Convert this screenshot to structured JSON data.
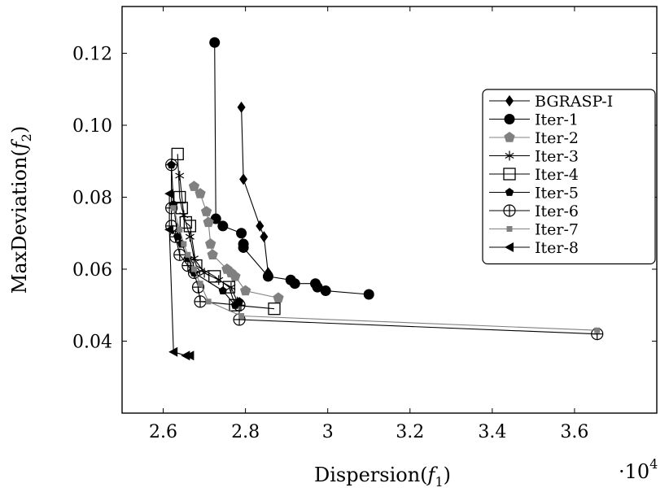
{
  "chart_data": {
    "type": "line",
    "xlabel": "Dispersion(f1)",
    "ylabel": "MaxDeviation(f2)",
    "x_multiplier": "·10^4",
    "xlim": [
      2.5,
      3.8
    ],
    "ylim": [
      0.02,
      0.133
    ],
    "x_ticks": [
      2.6,
      2.8,
      3.0,
      3.2,
      3.4,
      3.6
    ],
    "x_tick_labels": [
      "2.6",
      "2.8",
      "3",
      "3.2",
      "3.4",
      "3.6"
    ],
    "y_ticks": [
      0.04,
      0.06,
      0.08,
      0.1,
      0.12
    ],
    "y_tick_labels": [
      "0.04",
      "0.06",
      "0.08",
      "0.10",
      "0.12"
    ],
    "legend_position": "right",
    "series": [
      {
        "name": "BGRASP-I",
        "marker": "diamond",
        "color": "#000000",
        "points": [
          [
            2.79,
            0.105
          ],
          [
            2.795,
            0.085
          ],
          [
            2.835,
            0.072
          ],
          [
            2.845,
            0.069
          ],
          [
            2.855,
            0.059
          ]
        ]
      },
      {
        "name": "Iter-1",
        "marker": "circle",
        "color": "#000000",
        "points": [
          [
            2.725,
            0.123
          ],
          [
            2.728,
            0.074
          ],
          [
            2.745,
            0.072
          ],
          [
            2.79,
            0.07
          ],
          [
            2.795,
            0.067
          ],
          [
            2.795,
            0.066
          ],
          [
            2.855,
            0.058
          ],
          [
            2.91,
            0.057
          ],
          [
            2.92,
            0.056
          ],
          [
            2.97,
            0.056
          ],
          [
            2.975,
            0.055
          ],
          [
            2.995,
            0.054
          ],
          [
            3.1,
            0.053
          ]
        ]
      },
      {
        "name": "Iter-2",
        "marker": "pentagon",
        "color": "#808080",
        "points": [
          [
            2.675,
            0.083
          ],
          [
            2.69,
            0.081
          ],
          [
            2.705,
            0.076
          ],
          [
            2.71,
            0.073
          ],
          [
            2.715,
            0.067
          ],
          [
            2.72,
            0.064
          ],
          [
            2.755,
            0.06
          ],
          [
            2.765,
            0.059
          ],
          [
            2.775,
            0.058
          ],
          [
            2.8,
            0.054
          ],
          [
            2.88,
            0.052
          ]
        ]
      },
      {
        "name": "Iter-3",
        "marker": "asterisk",
        "color": "#000000",
        "points": [
          [
            2.64,
            0.086
          ],
          [
            2.65,
            0.075
          ],
          [
            2.665,
            0.069
          ],
          [
            2.675,
            0.063
          ],
          [
            2.7,
            0.059
          ],
          [
            2.735,
            0.057
          ],
          [
            2.765,
            0.055
          ],
          [
            2.78,
            0.051
          ]
        ]
      },
      {
        "name": "Iter-4",
        "marker": "square",
        "color": "#000000",
        "points": [
          [
            2.635,
            0.092
          ],
          [
            2.64,
            0.08
          ],
          [
            2.645,
            0.077
          ],
          [
            2.655,
            0.073
          ],
          [
            2.665,
            0.072
          ],
          [
            2.68,
            0.061
          ],
          [
            2.725,
            0.058
          ],
          [
            2.76,
            0.055
          ],
          [
            2.775,
            0.05
          ],
          [
            2.87,
            0.049
          ]
        ]
      },
      {
        "name": "Iter-5",
        "marker": "pentagon-filled",
        "color": "#000000",
        "points": [
          [
            2.62,
            0.089
          ],
          [
            2.625,
            0.078
          ],
          [
            2.635,
            0.069
          ],
          [
            2.645,
            0.067
          ],
          [
            2.66,
            0.063
          ],
          [
            2.675,
            0.059
          ],
          [
            2.745,
            0.054
          ],
          [
            2.775,
            0.05
          ],
          [
            2.785,
            0.051
          ]
        ]
      },
      {
        "name": "Iter-6",
        "marker": "circle-plus",
        "color": "#000000",
        "points": [
          [
            2.62,
            0.089
          ],
          [
            2.62,
            0.077
          ],
          [
            2.62,
            0.072
          ],
          [
            2.63,
            0.069
          ],
          [
            2.64,
            0.064
          ],
          [
            2.66,
            0.061
          ],
          [
            2.675,
            0.059
          ],
          [
            2.685,
            0.055
          ],
          [
            2.69,
            0.051
          ],
          [
            2.785,
            0.05
          ],
          [
            2.785,
            0.046
          ],
          [
            3.655,
            0.042
          ]
        ]
      },
      {
        "name": "Iter-7",
        "marker": "small-square",
        "color": "#808080",
        "points": [
          [
            2.625,
            0.077
          ],
          [
            2.64,
            0.071
          ],
          [
            2.65,
            0.067
          ],
          [
            2.66,
            0.064
          ],
          [
            2.675,
            0.06
          ],
          [
            2.69,
            0.056
          ],
          [
            2.71,
            0.051
          ],
          [
            2.79,
            0.047
          ],
          [
            3.655,
            0.043
          ]
        ]
      },
      {
        "name": "Iter-8",
        "marker": "triangle-left",
        "color": "#000000",
        "points": [
          [
            2.615,
            0.081
          ],
          [
            2.615,
            0.071
          ],
          [
            2.625,
            0.037
          ],
          [
            2.655,
            0.036
          ],
          [
            2.665,
            0.036
          ]
        ]
      }
    ]
  }
}
